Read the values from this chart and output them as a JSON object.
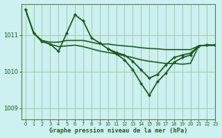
{
  "title": "Graphe pression niveau de la mer (hPa)",
  "background_color": "#cdf0f0",
  "grid_color": "#99ccaa",
  "line_color": "#1a5c1a",
  "xlim": [
    -0.5,
    23
  ],
  "ylim": [
    1008.7,
    1011.85
  ],
  "yticks": [
    1009,
    1010,
    1011
  ],
  "xticks": [
    0,
    1,
    2,
    3,
    4,
    5,
    6,
    7,
    8,
    9,
    10,
    11,
    12,
    13,
    14,
    15,
    16,
    17,
    18,
    19,
    20,
    21,
    22,
    23
  ],
  "series": [
    {
      "x": [
        0,
        1,
        2,
        3,
        4,
        5,
        6,
        7,
        8,
        9,
        10,
        11,
        12,
        13,
        14,
        15,
        16,
        17,
        18,
        19,
        20,
        21,
        22,
        23
      ],
      "y": [
        1011.7,
        1011.05,
        1010.85,
        1010.8,
        1010.8,
        1010.85,
        1010.85,
        1010.85,
        1010.8,
        1010.75,
        1010.75,
        1010.72,
        1010.7,
        1010.68,
        1010.65,
        1010.63,
        1010.62,
        1010.6,
        1010.6,
        1010.6,
        1010.6,
        1010.7,
        1010.72,
        1010.72
      ],
      "marker": false,
      "lw": 1.2
    },
    {
      "x": [
        0,
        1,
        2,
        3,
        4,
        5,
        6,
        7,
        8,
        9,
        10,
        11,
        12,
        13,
        14,
        15,
        16,
        17,
        18,
        19,
        20,
        21,
        22,
        23
      ],
      "y": [
        1011.7,
        1011.05,
        1010.82,
        1010.75,
        1010.68,
        1010.7,
        1010.72,
        1010.68,
        1010.62,
        1010.56,
        1010.52,
        1010.48,
        1010.43,
        1010.38,
        1010.32,
        1010.28,
        1010.25,
        1010.22,
        1010.22,
        1010.2,
        1010.22,
        1010.7,
        1010.72,
        1010.72
      ],
      "marker": false,
      "lw": 1.2
    },
    {
      "x": [
        0,
        1,
        2,
        3,
        4,
        5,
        6,
        7,
        8,
        9,
        10,
        11,
        12,
        13,
        14,
        15,
        16,
        17,
        18,
        19,
        20,
        21,
        22,
        23
      ],
      "y": [
        1011.7,
        1011.05,
        1010.82,
        1010.75,
        1010.55,
        1011.05,
        1011.55,
        1011.38,
        1010.92,
        1010.78,
        1010.62,
        1010.52,
        1010.45,
        1010.28,
        1010.05,
        1009.82,
        1009.92,
        1010.18,
        1010.38,
        1010.45,
        1010.5,
        1010.7,
        1010.72,
        1010.72
      ],
      "marker": true,
      "lw": 1.3
    },
    {
      "x": [
        10,
        11,
        12,
        13,
        14,
        15,
        16,
        17,
        18,
        19,
        20,
        21,
        22,
        23
      ],
      "y": [
        1010.62,
        1010.48,
        1010.32,
        1010.05,
        1009.68,
        1009.35,
        1009.72,
        1009.95,
        1010.25,
        1010.38,
        1010.45,
        1010.7,
        1010.72,
        1010.72
      ],
      "marker": true,
      "lw": 1.3
    }
  ]
}
